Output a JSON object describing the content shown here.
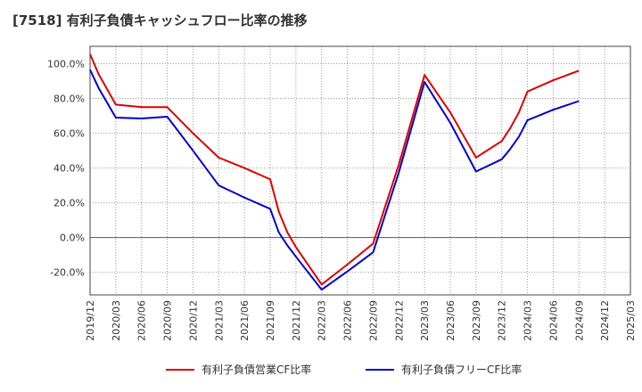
{
  "chart_data": {
    "type": "line",
    "title": "[7518]  有利子負債キャッシュフロー比率の推移",
    "xlabel": "",
    "ylabel": "",
    "ylim": [
      -33,
      110
    ],
    "y_ticks": [
      -20,
      0,
      20,
      40,
      60,
      80,
      100
    ],
    "y_tick_labels": [
      "-20.0%",
      "0.0%",
      "20.0%",
      "40.0%",
      "60.0%",
      "80.0%",
      "100.0%"
    ],
    "x_tick_labels": [
      "2019/12",
      "2020/03",
      "2020/06",
      "2020/09",
      "2020/12",
      "2021/03",
      "2021/06",
      "2021/09",
      "2021/12",
      "2022/03",
      "2022/06",
      "2022/09",
      "2022/12",
      "2023/03",
      "2023/06",
      "2023/09",
      "2023/12",
      "2024/03",
      "2024/06",
      "2024/09",
      "2024/12",
      "2025/03"
    ],
    "grid": true,
    "legend_position": "bottom",
    "series": [
      {
        "name": "有利子負債営業CF比率",
        "color": "#dd0000",
        "points": [
          [
            "2019/12",
            105.5
          ],
          [
            "2020/01",
            94.0
          ],
          [
            "2020/03",
            76.5
          ],
          [
            "2020/06",
            75.0
          ],
          [
            "2020/09",
            75.0
          ],
          [
            "2020/12",
            60.0
          ],
          [
            "2021/03",
            46.0
          ],
          [
            "2021/06",
            40.0
          ],
          [
            "2021/09",
            33.5
          ],
          [
            "2021/10",
            15.0
          ],
          [
            "2021/11",
            3.0
          ],
          [
            "2021/12",
            -5.5
          ],
          [
            "2022/03",
            -27.0
          ],
          [
            "2022/06",
            -15.5
          ],
          [
            "2022/09",
            -3.5
          ],
          [
            "2022/12",
            42.0
          ],
          [
            "2023/03",
            93.5
          ],
          [
            "2023/06",
            72.0
          ],
          [
            "2023/09",
            46.0
          ],
          [
            "2023/12",
            55.5
          ],
          [
            "2024/01",
            63.0
          ],
          [
            "2024/02",
            72.0
          ],
          [
            "2024/03",
            84.0
          ],
          [
            "2024/06",
            90.5
          ],
          [
            "2024/09",
            96.0
          ]
        ]
      },
      {
        "name": "有利子負債フリーCF比率",
        "color": "#0000cc",
        "points": [
          [
            "2019/12",
            96.5
          ],
          [
            "2020/01",
            86.0
          ],
          [
            "2020/03",
            69.0
          ],
          [
            "2020/06",
            68.5
          ],
          [
            "2020/09",
            69.5
          ],
          [
            "2020/12",
            50.0
          ],
          [
            "2021/03",
            30.0
          ],
          [
            "2021/06",
            23.0
          ],
          [
            "2021/09",
            16.5
          ],
          [
            "2021/10",
            3.0
          ],
          [
            "2021/11",
            -4.5
          ],
          [
            "2021/12",
            -11.0
          ],
          [
            "2022/03",
            -30.0
          ],
          [
            "2022/06",
            -19.5
          ],
          [
            "2022/09",
            -8.5
          ],
          [
            "2022/12",
            37.5
          ],
          [
            "2023/03",
            89.5
          ],
          [
            "2023/06",
            66.0
          ],
          [
            "2023/09",
            38.0
          ],
          [
            "2023/12",
            45.0
          ],
          [
            "2024/01",
            51.0
          ],
          [
            "2024/02",
            58.0
          ],
          [
            "2024/03",
            67.5
          ],
          [
            "2024/06",
            73.5
          ],
          [
            "2024/09",
            78.5
          ]
        ]
      }
    ]
  }
}
